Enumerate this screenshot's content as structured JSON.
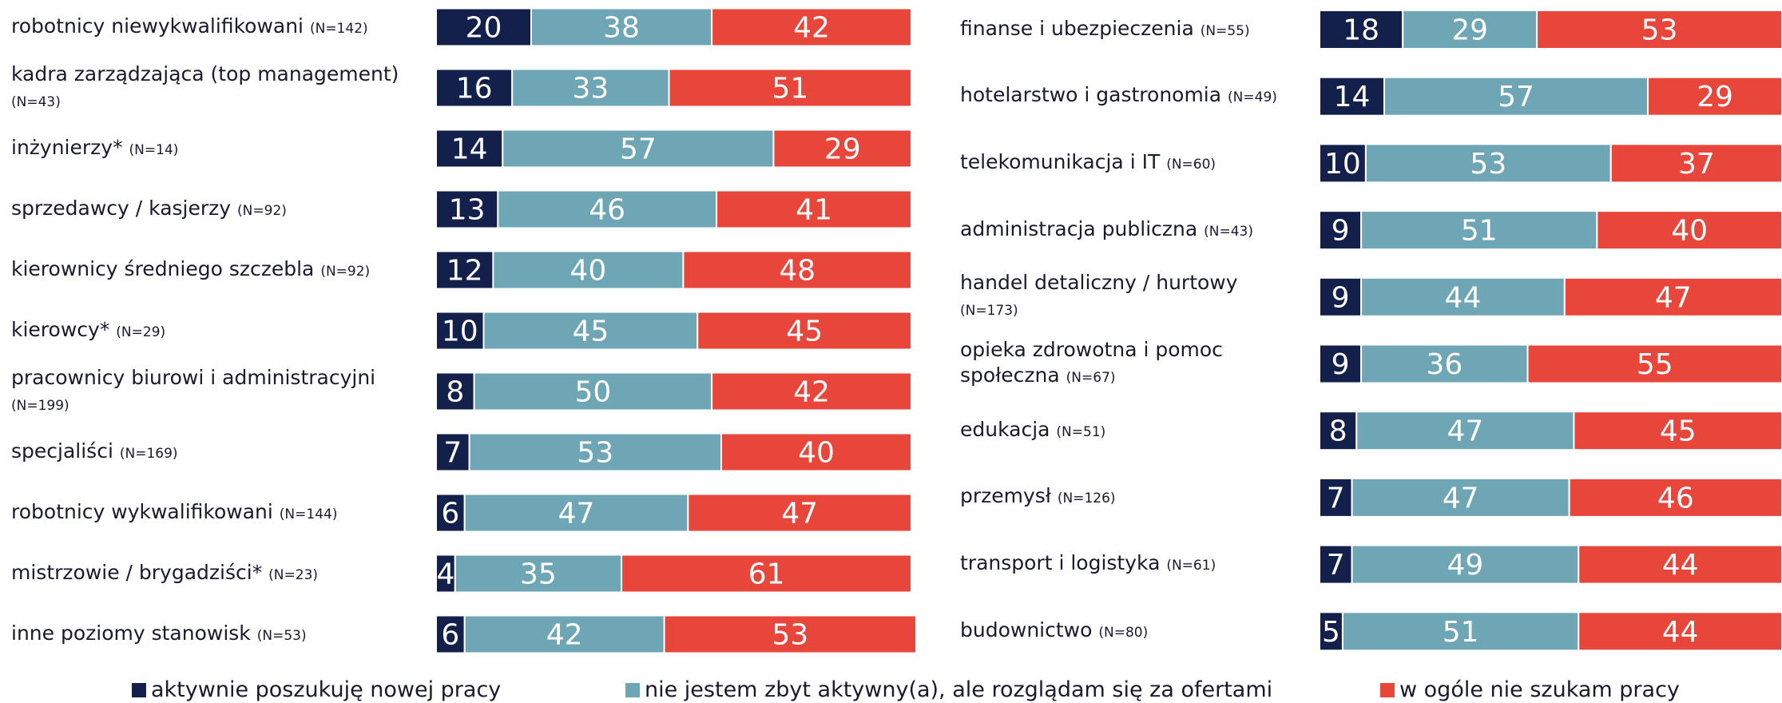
{
  "chart_data": [
    {
      "type": "stacked-bar",
      "categories": [
        "robotnicy niewykwalifikowani",
        "kadra zarządzająca (top management)",
        "inżynierzy*",
        "sprzedawcy / kasjerzy",
        "kierownicy średniego szczebla",
        "kierowcy*",
        "pracownicy biurowi i administracyjni",
        "specjaliści",
        "robotnicy wykwalifikowani",
        "mistrzowie / brygadziści*",
        "inne poziomy stanowisk"
      ],
      "category_notes": [
        "(N=142)",
        "(N=43)",
        "(N=14)",
        "(N=92)",
        "(N=92)",
        "(N=29)",
        "(N=199)",
        "(N=169)",
        "(N=144)",
        "(N=23)",
        "(N=53)"
      ],
      "series": [
        {
          "name": "aktywnie poszukuję nowej pracy",
          "color": "#13204b",
          "values": [
            20,
            16,
            14,
            13,
            12,
            10,
            8,
            7,
            6,
            4,
            6
          ]
        },
        {
          "name": "nie jestem zbyt aktywny(a), ale rozglądam się za ofertami",
          "color": "#6ea6b5",
          "values": [
            38,
            33,
            57,
            46,
            40,
            45,
            50,
            53,
            47,
            35,
            42
          ]
        },
        {
          "name": "w ogóle nie szukam pracy",
          "color": "#e8453b",
          "values": [
            42,
            51,
            29,
            41,
            48,
            45,
            42,
            40,
            47,
            61,
            53
          ]
        }
      ]
    },
    {
      "type": "stacked-bar",
      "categories": [
        "finanse i ubezpieczenia",
        "hotelarstwo i gastronomia",
        "telekomunikacja i IT",
        "administracja publiczna",
        "handel detaliczny / hurtowy",
        "opieka zdrowotna i pomoc społeczna",
        "edukacja",
        "przemysł",
        "transport i logistyka",
        "budownictwo"
      ],
      "category_notes": [
        "(N=55)",
        "(N=49)",
        "(N=60)",
        "(N=43)",
        "(N=173)",
        "(N=67)",
        "(N=51)",
        "(N=126)",
        "(N=61)",
        "(N=80)"
      ],
      "series": [
        {
          "values": [
            18,
            14,
            10,
            9,
            9,
            9,
            8,
            7,
            7,
            5
          ]
        },
        {
          "values": [
            29,
            57,
            53,
            51,
            44,
            36,
            47,
            47,
            49,
            51
          ]
        },
        {
          "values": [
            53,
            29,
            37,
            40,
            47,
            55,
            45,
            46,
            44,
            44
          ]
        }
      ]
    }
  ]
}
